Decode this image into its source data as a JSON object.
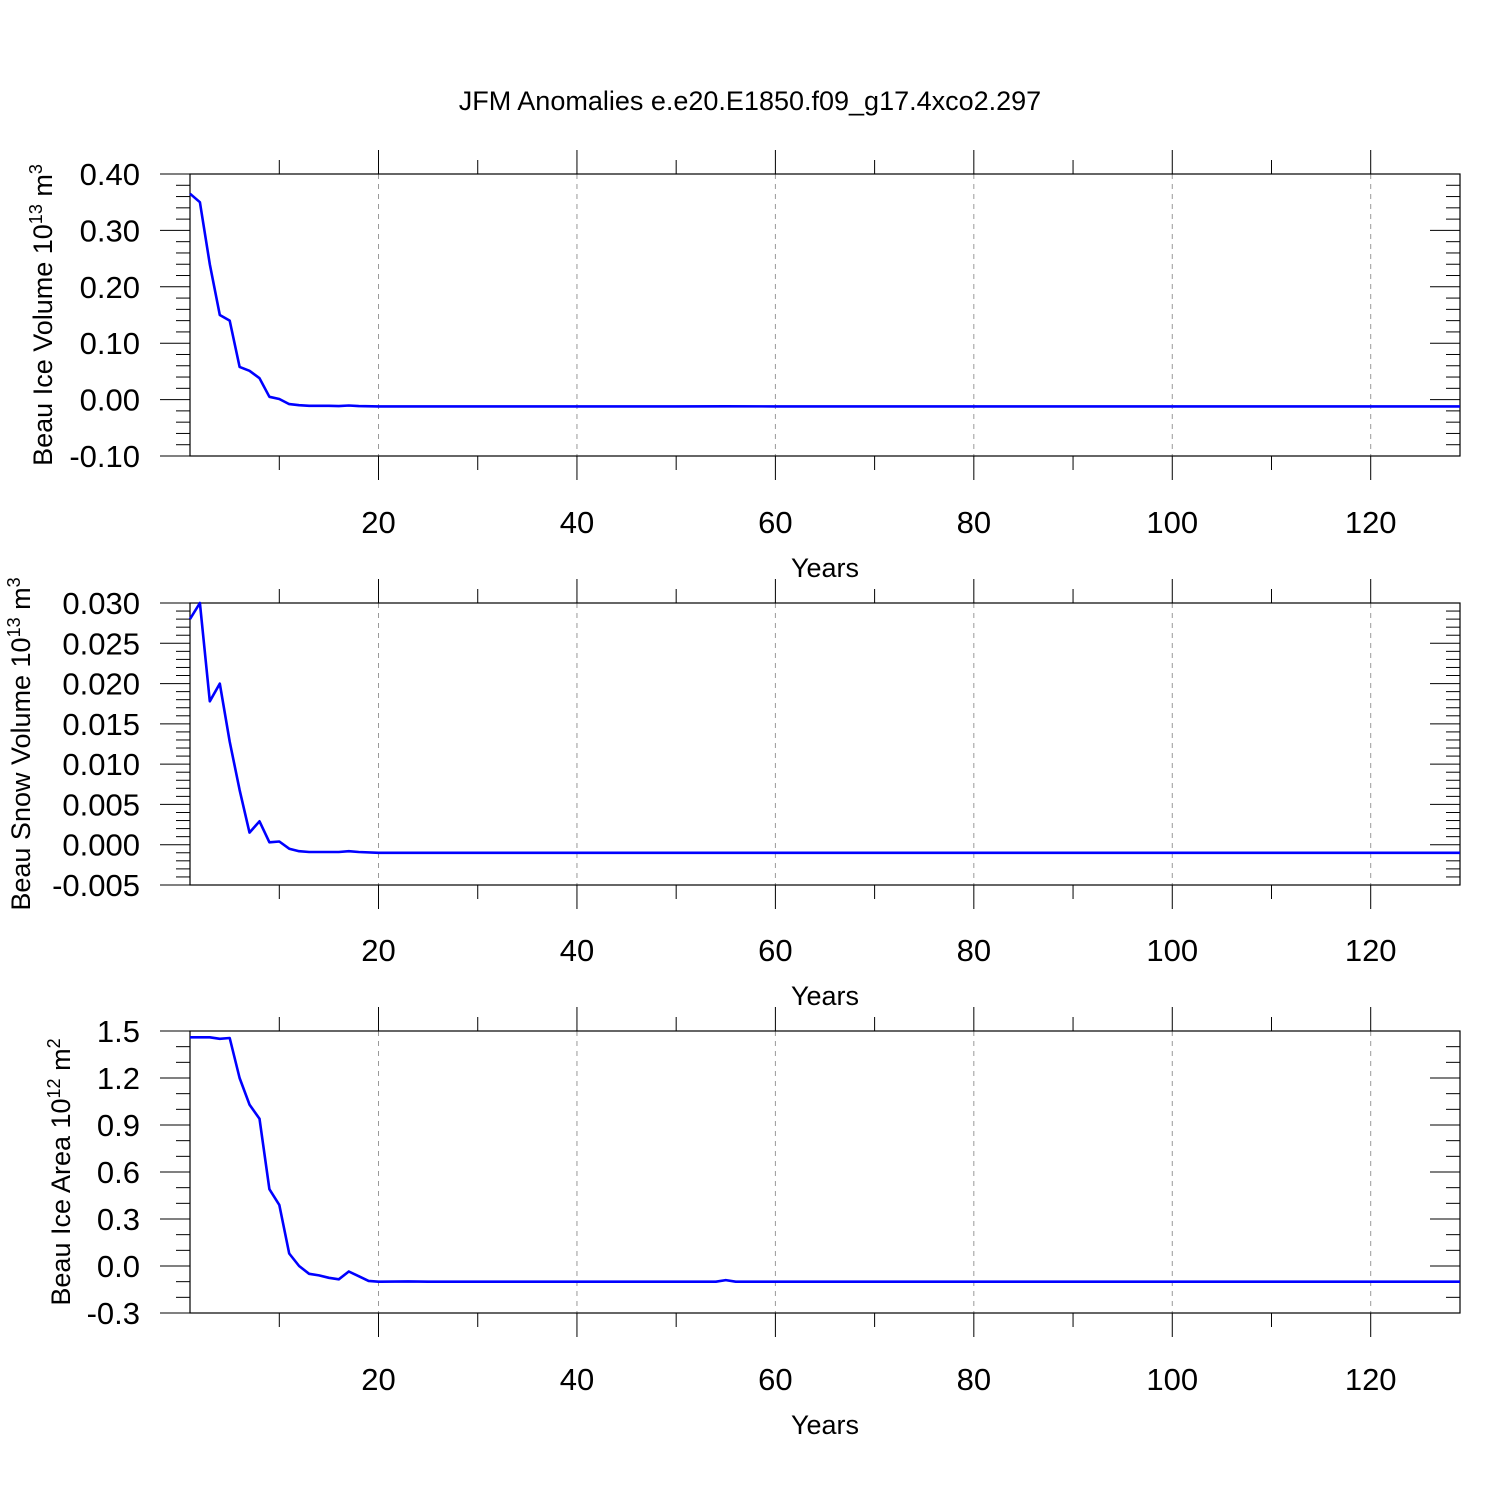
{
  "title": "JFM Anomalies e.e20.E1850.f09_g17.4xco2.297",
  "colors": {
    "series": "#0000ff",
    "grid": "#999999",
    "axis": "#000000"
  },
  "chart_data": [
    {
      "type": "line",
      "ylabel": "Beau Ice Volume 10",
      "ylabel_exp": "13",
      "ylabel_unit": "m",
      "ylabel_unit_exp": "3",
      "xlabel": "Years",
      "xlim": [
        1,
        129
      ],
      "ylim": [
        -0.1,
        0.4
      ],
      "x_ticks": [
        20,
        40,
        60,
        80,
        100,
        120
      ],
      "x_tick_labels": [
        "20",
        "40",
        "60",
        "80",
        "100",
        "120"
      ],
      "y_ticks": [
        -0.1,
        0.0,
        0.1,
        0.2,
        0.3,
        0.4
      ],
      "y_tick_labels": [
        "-0.10",
        "0.00",
        "0.10",
        "0.20",
        "0.30",
        "0.40"
      ],
      "y_minor_step": 0.02,
      "grid": "x-dashed",
      "series": [
        {
          "points": [
            [
              1,
              0.365
            ],
            [
              2,
              0.35
            ],
            [
              3,
              0.24
            ],
            [
              4,
              0.15
            ],
            [
              5,
              0.14
            ],
            [
              6,
              0.058
            ],
            [
              7,
              0.051
            ],
            [
              8,
              0.038
            ],
            [
              9,
              0.005
            ],
            [
              10,
              0.001
            ],
            [
              11,
              -0.008
            ],
            [
              12,
              -0.01
            ],
            [
              13,
              -0.011
            ],
            [
              14,
              -0.011
            ],
            [
              15,
              -0.011
            ],
            [
              16,
              -0.0115
            ],
            [
              17,
              -0.0105
            ],
            [
              18,
              -0.0115
            ],
            [
              20,
              -0.012
            ],
            [
              30,
              -0.012
            ],
            [
              50,
              -0.012
            ],
            [
              55,
              -0.0118
            ],
            [
              60,
              -0.012
            ],
            [
              80,
              -0.012
            ],
            [
              100,
              -0.012
            ],
            [
              129,
              -0.012
            ]
          ]
        }
      ]
    },
    {
      "type": "line",
      "ylabel": "Beau Snow Volume 10",
      "ylabel_exp": "13",
      "ylabel_unit": "m",
      "ylabel_unit_exp": "3",
      "xlabel": "Years",
      "xlim": [
        1,
        129
      ],
      "ylim": [
        -0.005,
        0.03
      ],
      "x_ticks": [
        20,
        40,
        60,
        80,
        100,
        120
      ],
      "x_tick_labels": [
        "20",
        "40",
        "60",
        "80",
        "100",
        "120"
      ],
      "y_ticks": [
        -0.005,
        0.0,
        0.005,
        0.01,
        0.015,
        0.02,
        0.025,
        0.03
      ],
      "y_tick_labels": [
        "-0.005",
        "0.000",
        "0.005",
        "0.010",
        "0.015",
        "0.020",
        "0.025",
        "0.030"
      ],
      "y_minor_step": 0.001,
      "grid": "x-dashed",
      "series": [
        {
          "points": [
            [
              1,
              0.028
            ],
            [
              2,
              0.03
            ],
            [
              3,
              0.0178
            ],
            [
              4,
              0.02
            ],
            [
              5,
              0.0128
            ],
            [
              6,
              0.0068
            ],
            [
              7,
              0.0015
            ],
            [
              8,
              0.0029
            ],
            [
              9,
              0.0003
            ],
            [
              10,
              0.0004
            ],
            [
              11,
              -0.0005
            ],
            [
              12,
              -0.0008
            ],
            [
              13,
              -0.0009
            ],
            [
              14,
              -0.0009
            ],
            [
              15,
              -0.0009
            ],
            [
              16,
              -0.0009
            ],
            [
              17,
              -0.0008
            ],
            [
              18,
              -0.0009
            ],
            [
              20,
              -0.001
            ],
            [
              40,
              -0.001
            ],
            [
              60,
              -0.001
            ],
            [
              80,
              -0.001
            ],
            [
              100,
              -0.001
            ],
            [
              129,
              -0.001
            ]
          ]
        }
      ]
    },
    {
      "type": "line",
      "ylabel": "Beau Ice Area 10",
      "ylabel_exp": "12",
      "ylabel_unit": "m",
      "ylabel_unit_exp": "2",
      "xlabel": "Years",
      "xlim": [
        1,
        129
      ],
      "ylim": [
        -0.3,
        1.5
      ],
      "x_ticks": [
        20,
        40,
        60,
        80,
        100,
        120
      ],
      "x_tick_labels": [
        "20",
        "40",
        "60",
        "80",
        "100",
        "120"
      ],
      "y_ticks": [
        -0.3,
        0.0,
        0.3,
        0.6,
        0.9,
        1.2,
        1.5
      ],
      "y_tick_labels": [
        "-0.3",
        "0.0",
        "0.3",
        "0.6",
        "0.9",
        "1.2",
        "1.5"
      ],
      "y_minor_step": 0.1,
      "grid": "x-dashed",
      "series": [
        {
          "points": [
            [
              1,
              1.46
            ],
            [
              2,
              1.46
            ],
            [
              3,
              1.46
            ],
            [
              4,
              1.45
            ],
            [
              5,
              1.455
            ],
            [
              6,
              1.2
            ],
            [
              7,
              1.03
            ],
            [
              8,
              0.94
            ],
            [
              9,
              0.49
            ],
            [
              10,
              0.39
            ],
            [
              11,
              0.08
            ],
            [
              12,
              0.0
            ],
            [
              13,
              -0.05
            ],
            [
              14,
              -0.06
            ],
            [
              15,
              -0.075
            ],
            [
              16,
              -0.085
            ],
            [
              17,
              -0.035
            ],
            [
              18,
              -0.065
            ],
            [
              19,
              -0.095
            ],
            [
              20,
              -0.1
            ],
            [
              23,
              -0.098
            ],
            [
              25,
              -0.1
            ],
            [
              48,
              -0.1
            ],
            [
              54,
              -0.1
            ],
            [
              55,
              -0.09
            ],
            [
              56,
              -0.1
            ],
            [
              80,
              -0.1
            ],
            [
              100,
              -0.1
            ],
            [
              129,
              -0.1
            ]
          ]
        }
      ]
    }
  ]
}
